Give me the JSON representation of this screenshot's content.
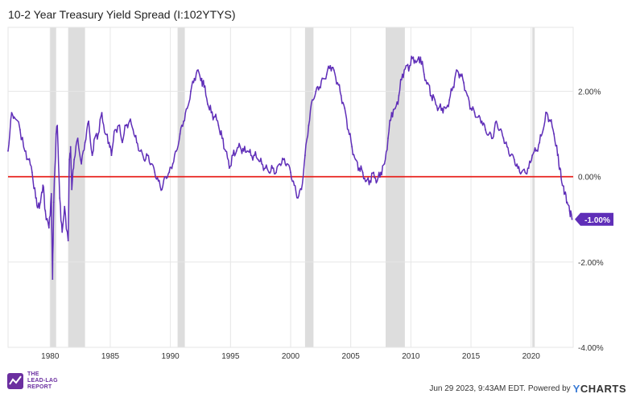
{
  "chart_data": {
    "type": "line",
    "title": "10-2 Year Treasury Yield Spread (I:102YTYS)",
    "xlabel": "",
    "ylabel": "",
    "x_range": [
      1976.5,
      2023.5
    ],
    "ylim": [
      -4.0,
      3.5
    ],
    "y_ticks": [
      {
        "value": 2.0,
        "label": "2.00%"
      },
      {
        "value": 0.0,
        "label": "0.00%"
      },
      {
        "value": -2.0,
        "label": "-2.00%"
      },
      {
        "value": -4.0,
        "label": "-4.00%"
      }
    ],
    "x_ticks": [
      {
        "value": 1980,
        "label": "1980"
      },
      {
        "value": 1985,
        "label": "1985"
      },
      {
        "value": 1990,
        "label": "1990"
      },
      {
        "value": 1995,
        "label": "1995"
      },
      {
        "value": 2000,
        "label": "2000"
      },
      {
        "value": 2005,
        "label": "2005"
      },
      {
        "value": 2010,
        "label": "2010"
      },
      {
        "value": 2015,
        "label": "2015"
      },
      {
        "value": 2020,
        "label": "2020"
      }
    ],
    "recessions": [
      [
        1980.0,
        1980.5
      ],
      [
        1981.5,
        1982.9
      ],
      [
        1990.6,
        1991.2
      ],
      [
        2001.2,
        2001.9
      ],
      [
        2007.9,
        2009.5
      ],
      [
        2020.1,
        2020.3
      ]
    ],
    "reference_line": {
      "value": 0.0,
      "color": "#e8231e"
    },
    "last_value_label": "-1.00%",
    "series": [
      {
        "name": "10-2 Year Treasury Yield Spread",
        "color": "#5f2eb8",
        "x": [
          1976.5,
          1976.8,
          1977.0,
          1977.5,
          1977.9,
          1978.2,
          1978.5,
          1978.8,
          1979.0,
          1979.2,
          1979.4,
          1979.6,
          1979.9,
          1980.1,
          1980.2,
          1980.3,
          1980.5,
          1980.6,
          1980.8,
          1981.0,
          1981.2,
          1981.5,
          1981.6,
          1981.7,
          1981.8,
          1982.0,
          1982.3,
          1982.6,
          1982.9,
          1983.2,
          1983.5,
          1983.7,
          1984.0,
          1984.3,
          1984.6,
          1984.9,
          1985.1,
          1985.4,
          1985.7,
          1986.0,
          1986.3,
          1986.6,
          1986.9,
          1987.2,
          1987.5,
          1987.8,
          1988.1,
          1988.4,
          1988.7,
          1989.0,
          1989.3,
          1989.6,
          1989.9,
          1990.2,
          1990.5,
          1990.8,
          1991.1,
          1991.4,
          1991.7,
          1992.0,
          1992.3,
          1992.6,
          1992.8,
          1993.1,
          1993.4,
          1993.7,
          1994.0,
          1994.3,
          1994.6,
          1994.9,
          1995.2,
          1995.5,
          1995.8,
          1996.1,
          1996.4,
          1996.7,
          1997.0,
          1997.3,
          1997.6,
          1997.9,
          1998.2,
          1998.5,
          1998.8,
          1999.1,
          1999.4,
          1999.7,
          2000.0,
          2000.3,
          2000.6,
          2000.9,
          2001.2,
          2001.5,
          2001.8,
          2002.1,
          2002.4,
          2002.7,
          2003.0,
          2003.3,
          2003.6,
          2003.9,
          2004.2,
          2004.5,
          2004.8,
          2005.1,
          2005.4,
          2005.7,
          2006.0,
          2006.3,
          2006.6,
          2006.9,
          2007.2,
          2007.5,
          2007.8,
          2008.1,
          2008.4,
          2008.7,
          2009.0,
          2009.3,
          2009.6,
          2009.9,
          2010.2,
          2010.5,
          2010.8,
          2011.1,
          2011.4,
          2011.7,
          2012.0,
          2012.3,
          2012.6,
          2012.9,
          2013.2,
          2013.5,
          2013.8,
          2014.1,
          2014.4,
          2014.7,
          2015.0,
          2015.3,
          2015.6,
          2015.9,
          2016.2,
          2016.5,
          2016.8,
          2017.1,
          2017.4,
          2017.7,
          2018.0,
          2018.3,
          2018.6,
          2018.9,
          2019.2,
          2019.5,
          2019.8,
          2020.1,
          2020.4,
          2020.7,
          2021.0,
          2021.3,
          2021.6,
          2021.9,
          2022.2,
          2022.4,
          2022.6,
          2022.8,
          2023.0,
          2023.2,
          2023.4
        ],
        "values": [
          0.6,
          1.5,
          1.4,
          1.1,
          0.6,
          0.4,
          0.1,
          -0.5,
          -0.7,
          -0.6,
          -0.2,
          -0.8,
          -1.2,
          -0.4,
          -2.4,
          -0.6,
          1.0,
          1.2,
          -0.5,
          -1.3,
          -0.7,
          -1.5,
          0.4,
          0.7,
          -0.3,
          0.4,
          0.9,
          0.3,
          0.8,
          1.3,
          0.5,
          0.9,
          1.0,
          1.5,
          1.0,
          0.8,
          0.5,
          1.1,
          1.2,
          0.8,
          1.2,
          1.3,
          1.1,
          0.8,
          0.6,
          0.4,
          0.5,
          0.3,
          0.1,
          -0.1,
          -0.3,
          0.0,
          0.1,
          0.3,
          0.6,
          1.0,
          1.3,
          1.6,
          2.0,
          2.3,
          2.5,
          2.3,
          2.1,
          1.7,
          1.5,
          1.4,
          1.2,
          0.9,
          0.6,
          0.2,
          0.5,
          0.6,
          0.7,
          0.6,
          0.6,
          0.5,
          0.5,
          0.4,
          0.3,
          0.2,
          0.1,
          0.2,
          0.1,
          0.3,
          0.4,
          0.3,
          0.1,
          -0.2,
          -0.5,
          -0.3,
          0.5,
          1.2,
          1.8,
          2.0,
          2.1,
          2.3,
          2.4,
          2.6,
          2.5,
          2.2,
          1.9,
          1.6,
          1.1,
          0.7,
          0.4,
          0.2,
          0.1,
          -0.1,
          -0.1,
          0.1,
          -0.1,
          0.1,
          0.3,
          0.9,
          1.5,
          1.6,
          1.9,
          2.4,
          2.6,
          2.6,
          2.8,
          2.7,
          2.8,
          2.4,
          2.2,
          1.9,
          1.8,
          1.6,
          1.6,
          1.6,
          1.8,
          2.1,
          2.5,
          2.4,
          2.2,
          1.9,
          1.6,
          1.5,
          1.4,
          1.3,
          1.1,
          1.0,
          0.9,
          1.3,
          1.1,
          0.9,
          0.7,
          0.5,
          0.4,
          0.2,
          0.1,
          0.1,
          0.2,
          0.5,
          0.6,
          0.8,
          1.1,
          1.5,
          1.3,
          1.0,
          0.5,
          0.2,
          -0.2,
          -0.4,
          -0.6,
          -0.8,
          -1.0
        ]
      }
    ]
  },
  "footer": {
    "logo_line1": "THE",
    "logo_line2": "LEAD-LAG",
    "logo_line3": "REPORT",
    "timestamp": "Jun 29 2023, 9:43AM EDT.",
    "powered_by": "Powered by",
    "brand_y": "Y",
    "brand_rest": "CHARTS"
  },
  "colors": {
    "series": "#5f2eb8",
    "zero_line": "#e8231e",
    "recession": "#dddddd",
    "grid": "#e6e6e6",
    "label_bg": "#5f2eb8",
    "brand_accent": "#3a7bd5"
  }
}
